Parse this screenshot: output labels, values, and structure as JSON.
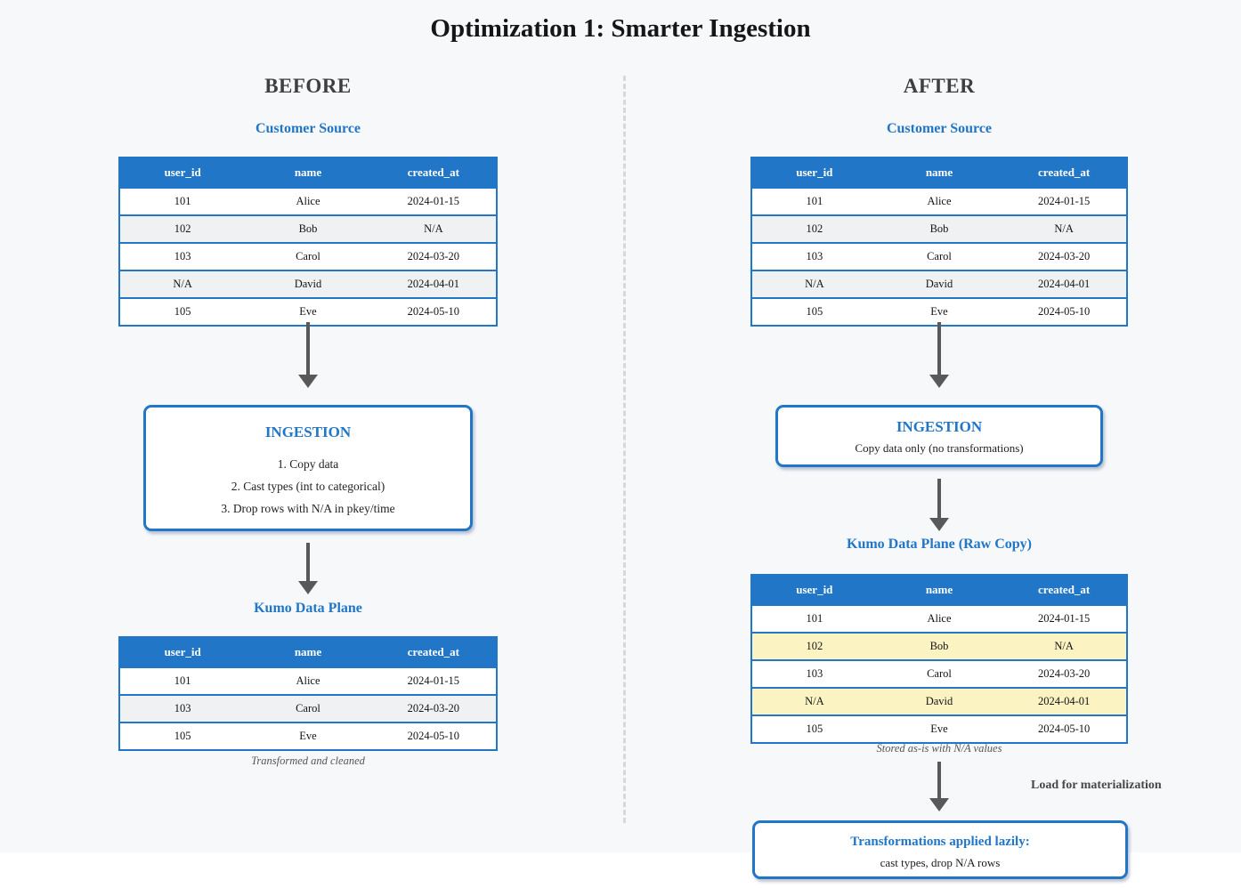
{
  "page": {
    "title": "Optimization 1: Smarter Ingestion"
  },
  "colors": {
    "accent_blue": "#2176c7",
    "highlight_yellow": "#fbf3c1",
    "zebra_gray": "#f0f1f3",
    "arrow_gray": "#595959",
    "canvas_bg": "#f6f8fa"
  },
  "before": {
    "heading": "BEFORE",
    "source_table": {
      "title": "Customer Source",
      "columns": [
        "user_id",
        "name",
        "created_at"
      ],
      "rows": [
        [
          "101",
          "Alice",
          "2024-01-15"
        ],
        [
          "102",
          "Bob",
          "N/A"
        ],
        [
          "103",
          "Carol",
          "2024-03-20"
        ],
        [
          "N/A",
          "David",
          "2024-04-01"
        ],
        [
          "105",
          "Eve",
          "2024-05-10"
        ]
      ]
    },
    "ingestion": {
      "title": "INGESTION",
      "steps": [
        "1. Copy data",
        "2. Cast types (int to categorical)",
        "3. Drop rows with N/A in pkey/time"
      ]
    },
    "result_table": {
      "title": "Kumo Data Plane",
      "columns": [
        "user_id",
        "name",
        "created_at"
      ],
      "rows": [
        [
          "101",
          "Alice",
          "2024-01-15"
        ],
        [
          "103",
          "Carol",
          "2024-03-20"
        ],
        [
          "105",
          "Eve",
          "2024-05-10"
        ]
      ]
    },
    "caption": "Transformed and cleaned"
  },
  "after": {
    "heading": "AFTER",
    "source_table": {
      "title": "Customer Source",
      "columns": [
        "user_id",
        "name",
        "created_at"
      ],
      "rows": [
        [
          "101",
          "Alice",
          "2024-01-15"
        ],
        [
          "102",
          "Bob",
          "N/A"
        ],
        [
          "103",
          "Carol",
          "2024-03-20"
        ],
        [
          "N/A",
          "David",
          "2024-04-01"
        ],
        [
          "105",
          "Eve",
          "2024-05-10"
        ]
      ]
    },
    "ingestion": {
      "title": "INGESTION",
      "subtitle": "Copy data only (no transformations)"
    },
    "result_table": {
      "title": "Kumo Data Plane (Raw Copy)",
      "columns": [
        "user_id",
        "name",
        "created_at"
      ],
      "rows": [
        [
          "101",
          "Alice",
          "2024-01-15"
        ],
        [
          "102",
          "Bob",
          "N/A"
        ],
        [
          "103",
          "Carol",
          "2024-03-20"
        ],
        [
          "N/A",
          "David",
          "2024-04-01"
        ],
        [
          "105",
          "Eve",
          "2024-05-10"
        ]
      ],
      "highlight_rows": [
        1,
        3
      ]
    },
    "caption": "Stored as-is with N/A values",
    "arrow_label": "Load for materialization",
    "lazy_box": {
      "title": "Transformations applied lazily:",
      "subtitle": "cast types, drop N/A rows"
    }
  }
}
